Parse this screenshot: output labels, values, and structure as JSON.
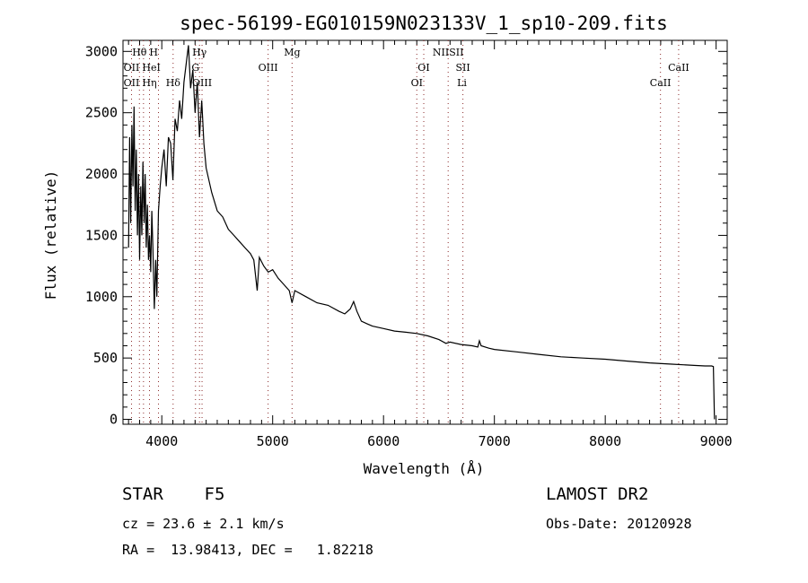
{
  "chart_data": {
    "type": "line",
    "title": "spec-56199-EG010159N023133V_1_sp10-209.fits",
    "xlabel": "Wavelength (Å)",
    "ylabel": "Flux (relative)",
    "xlim": [
      3650,
      9100
    ],
    "ylim": [
      -40,
      3090
    ],
    "xticks": [
      4000,
      5000,
      6000,
      7000,
      8000,
      9000
    ],
    "yticks": [
      0,
      500,
      1000,
      1500,
      2000,
      2500,
      3000
    ],
    "grid": false,
    "series": [
      {
        "name": "spectrum",
        "x": [
          3700,
          3710,
          3720,
          3730,
          3740,
          3750,
          3760,
          3770,
          3780,
          3790,
          3800,
          3810,
          3820,
          3830,
          3840,
          3850,
          3860,
          3870,
          3880,
          3890,
          3900,
          3910,
          3920,
          3933,
          3945,
          3955,
          3970,
          3985,
          4000,
          4020,
          4040,
          4060,
          4080,
          4100,
          4120,
          4140,
          4160,
          4180,
          4200,
          4220,
          4240,
          4260,
          4280,
          4300,
          4320,
          4340,
          4360,
          4380,
          4400,
          4450,
          4500,
          4550,
          4600,
          4650,
          4700,
          4750,
          4800,
          4830,
          4861,
          4880,
          4920,
          4960,
          5000,
          5050,
          5100,
          5150,
          5175,
          5200,
          5300,
          5400,
          5500,
          5600,
          5650,
          5700,
          5730,
          5760,
          5800,
          5850,
          5900,
          6000,
          6100,
          6200,
          6300,
          6400,
          6500,
          6563,
          6600,
          6700,
          6800,
          6850,
          6865,
          6880,
          6950,
          7000,
          7200,
          7400,
          7600,
          7800,
          8000,
          8200,
          8400,
          8600,
          8800,
          8900,
          8960,
          8975,
          8985
        ],
        "y": [
          1400,
          2300,
          1600,
          2400,
          1900,
          2550,
          1700,
          2200,
          1500,
          2000,
          1300,
          1900,
          1500,
          2100,
          1600,
          2000,
          1400,
          1750,
          1300,
          1500,
          1200,
          1700,
          1400,
          900,
          1300,
          1000,
          1700,
          1900,
          2050,
          2200,
          1900,
          2300,
          2250,
          1950,
          2450,
          2350,
          2600,
          2450,
          2750,
          2900,
          3050,
          2700,
          2850,
          2500,
          2750,
          2300,
          2600,
          2250,
          2050,
          1850,
          1700,
          1650,
          1550,
          1500,
          1450,
          1400,
          1350,
          1300,
          1050,
          1320,
          1250,
          1200,
          1220,
          1150,
          1100,
          1050,
          950,
          1050,
          1000,
          950,
          930,
          880,
          860,
          900,
          960,
          880,
          800,
          780,
          760,
          740,
          720,
          710,
          700,
          680,
          650,
          620,
          630,
          610,
          600,
          590,
          640,
          600,
          580,
          570,
          550,
          530,
          510,
          500,
          490,
          475,
          460,
          450,
          440,
          435,
          435,
          430,
          0
        ]
      }
    ],
    "lines": [
      {
        "label": "Hθ",
        "wl": 3798,
        "row": 0
      },
      {
        "label": "H",
        "wl": 3890,
        "row": 0
      },
      {
        "label": "Hγ",
        "wl": 4340,
        "row": 0
      },
      {
        "label": "Mg",
        "wl": 5175,
        "row": 0
      },
      {
        "label": "NIISII",
        "wl": 6583,
        "row": 0
      },
      {
        "label": "OII",
        "wl": 3727,
        "row": 1
      },
      {
        "label": "HeI",
        "wl": 3820,
        "row": 1
      },
      {
        "label": "G",
        "wl": 4304,
        "row": 1
      },
      {
        "label": "OIII",
        "wl": 4959,
        "row": 1
      },
      {
        "label": "OI",
        "wl": 6363,
        "row": 1
      },
      {
        "label": "SII",
        "wl": 6716,
        "row": 1
      },
      {
        "label": "CaII",
        "wl": 8662,
        "row": 1
      },
      {
        "label": "OII",
        "wl": 3727,
        "row": 2
      },
      {
        "label": "Hη",
        "wl": 3835,
        "row": 2
      },
      {
        "label": "Hδ",
        "wl": 4102,
        "row": 2
      },
      {
        "label": "OIII",
        "wl": 4363,
        "row": 2
      },
      {
        "label": "OI",
        "wl": 6300,
        "row": 2
      },
      {
        "label": "Li",
        "wl": 6707,
        "row": 2
      },
      {
        "label": "CaII",
        "wl": 8498,
        "row": 2
      }
    ],
    "line_marks": [
      3727,
      3798,
      3835,
      3889,
      3970,
      4102,
      4304,
      4340,
      4363,
      4959,
      5175,
      6300,
      6363,
      6583,
      6716,
      8498,
      8662
    ]
  },
  "info": {
    "class": "STAR    F5",
    "survey": "LAMOST DR2",
    "cz": "cz = 23.6 ± 2.1 km/s",
    "obs_date": "Obs-Date: 20120928",
    "coords": "RA =  13.98413, DEC =   1.82218"
  }
}
